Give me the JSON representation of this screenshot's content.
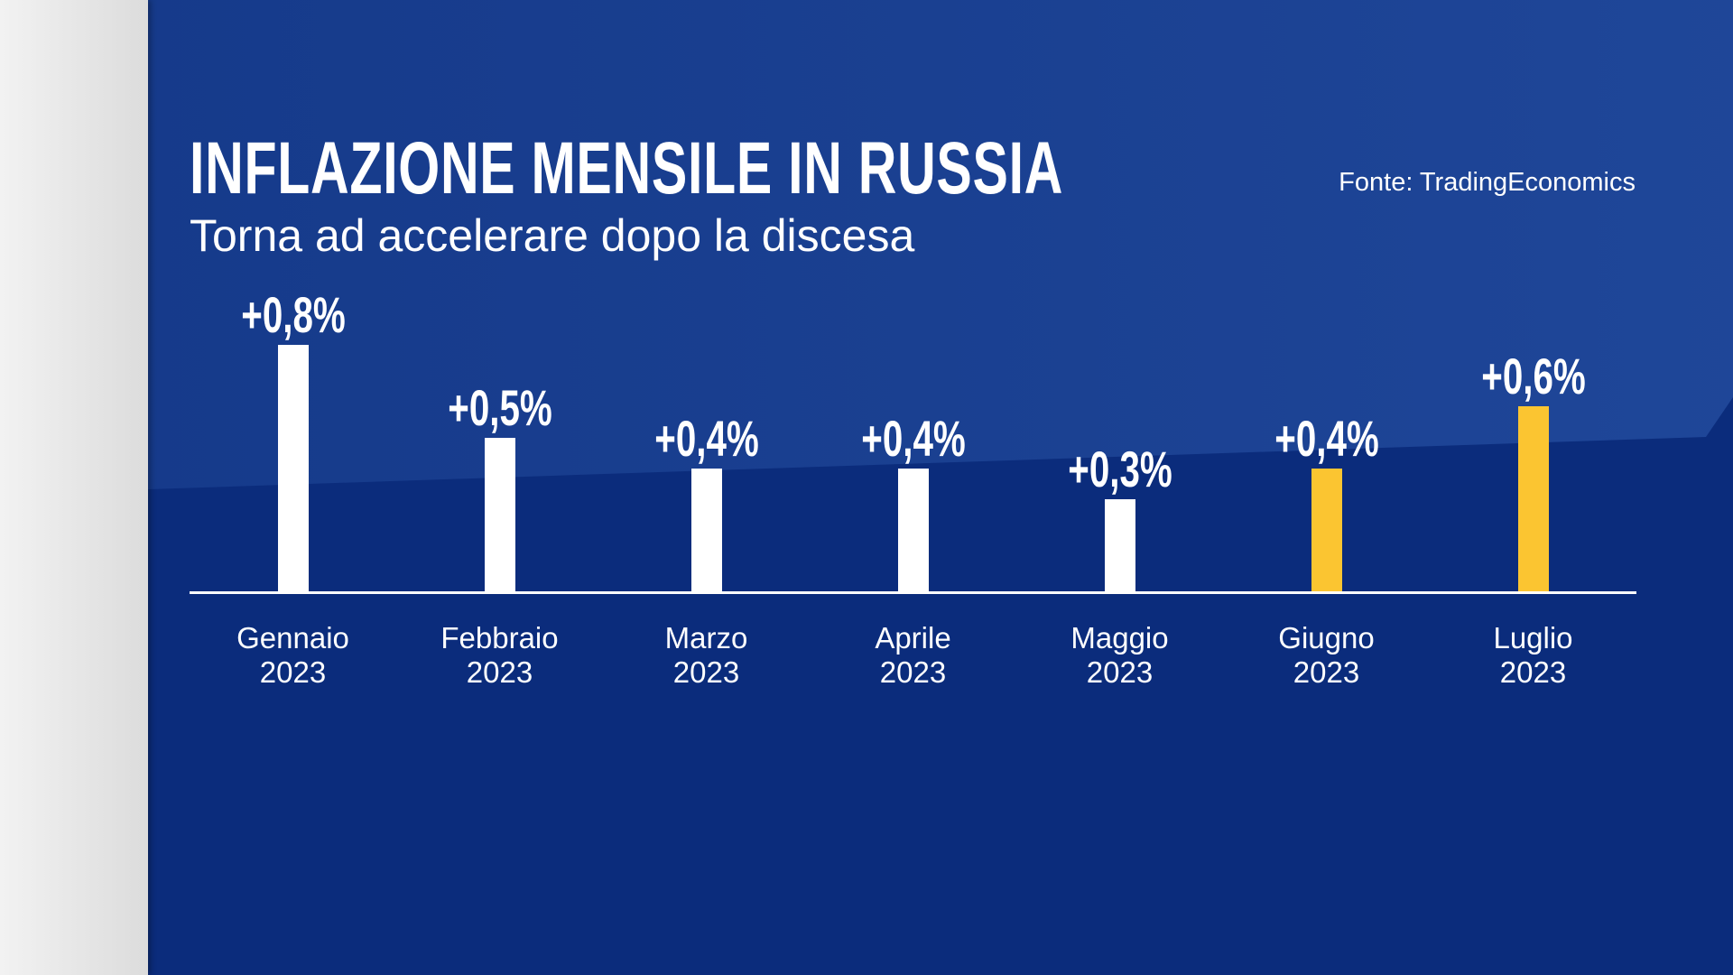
{
  "chart_data": {
    "type": "bar",
    "title": "INFLAZIONE MENSILE IN RUSSIA",
    "subtitle": "Torna ad accelerare dopo la discesa",
    "source": "Fonte: TradingEconomics",
    "categories": [
      "Gennaio 2023",
      "Febbraio 2023",
      "Marzo 2023",
      "Aprile 2023",
      "Maggio 2023",
      "Giugno 2023",
      "Luglio 2023"
    ],
    "values": [
      0.8,
      0.5,
      0.4,
      0.4,
      0.3,
      0.4,
      0.6
    ],
    "value_labels": [
      "+0,8%",
      "+0,5%",
      "+0,4%",
      "+0,4%",
      "+0,3%",
      "+0,4%",
      "+0,6%"
    ],
    "colors": [
      "#ffffff",
      "#ffffff",
      "#ffffff",
      "#ffffff",
      "#ffffff",
      "#fbc531",
      "#fbc531"
    ]
  }
}
